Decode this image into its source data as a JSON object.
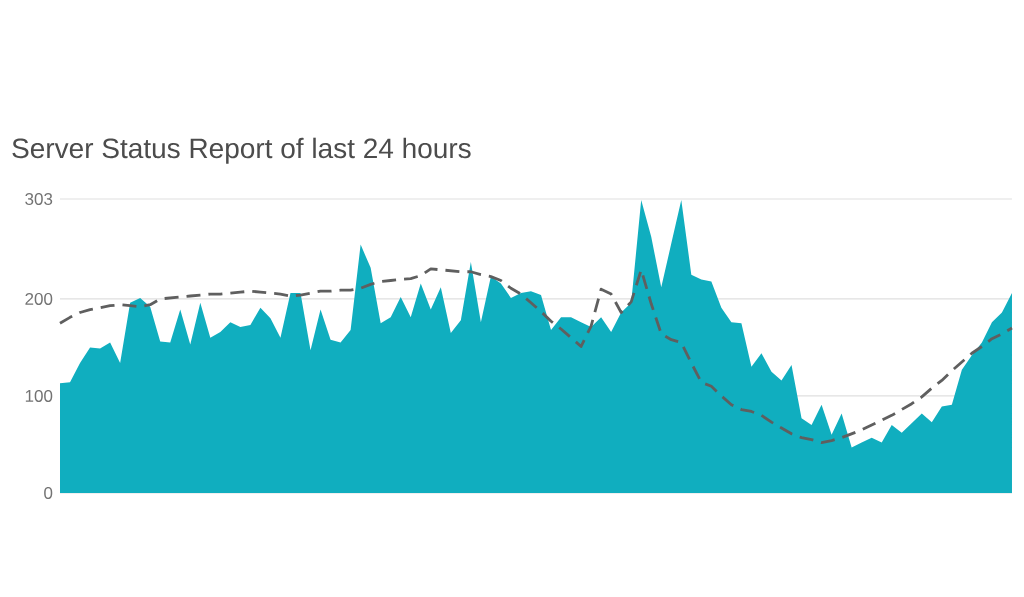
{
  "chart_data": {
    "type": "area",
    "title": "Server Status Report of last 24 hours",
    "categories": [
      null,
      null,
      null,
      null,
      null,
      null,
      null,
      null,
      null,
      null,
      null,
      null,
      null,
      null,
      null,
      null,
      null,
      null,
      null,
      null,
      null,
      null,
      null,
      null,
      null,
      null,
      null,
      null,
      null,
      null,
      null,
      null,
      null,
      null,
      null,
      null,
      null,
      null,
      null,
      null,
      null,
      null,
      null,
      null,
      null,
      null,
      null,
      null,
      null,
      null,
      null,
      null,
      null,
      null,
      null,
      null,
      null,
      null,
      null,
      null,
      null,
      null,
      null,
      null,
      null,
      null,
      null,
      null,
      null,
      null,
      null,
      null,
      null,
      null,
      null,
      null,
      null,
      null,
      null,
      null,
      null,
      null,
      null,
      null,
      null,
      null,
      null,
      null,
      null,
      null,
      null,
      null,
      null,
      null,
      null,
      null
    ],
    "series": [
      {
        "color": "#10aebf",
        "values": [
          113,
          114,
          134,
          150,
          149,
          155,
          134,
          196,
          201,
          192,
          156,
          155,
          189,
          153,
          196,
          160,
          166,
          176,
          171,
          173,
          191,
          180,
          160,
          206,
          206,
          147,
          189,
          158,
          155,
          168,
          256,
          232,
          175,
          181,
          202,
          181,
          216,
          189,
          212,
          165,
          178,
          238,
          176,
          223,
          216,
          201,
          206,
          208,
          204,
          168,
          181,
          181,
          176,
          171,
          181,
          166,
          186,
          196,
          302,
          264,
          212,
          257,
          302,
          225,
          220,
          218,
          191,
          176,
          175,
          130,
          144,
          125,
          116,
          132,
          77,
          70,
          91,
          60,
          82,
          47,
          52,
          57,
          52,
          70,
          62,
          72,
          82,
          73,
          89,
          91,
          127,
          142,
          155,
          176,
          186,
          206
        ]
      },
      {
        "type": "line",
        "color": "#5f5f5f",
        "line_style": "dashed",
        "values": [
          175,
          181,
          186,
          189,
          191,
          193,
          194,
          193,
          192,
          194,
          200,
          201,
          202,
          203,
          204,
          205,
          205,
          206,
          207,
          208,
          207,
          206,
          205,
          203,
          204,
          206,
          208,
          208,
          209,
          209,
          211,
          215,
          218,
          219,
          220,
          221,
          224,
          231,
          230,
          229,
          228,
          228,
          225,
          223,
          219,
          211,
          205,
          196,
          187,
          177,
          169,
          160,
          151,
          172,
          210,
          205,
          186,
          197,
          230,
          195,
          164,
          158,
          155,
          134,
          114,
          110,
          100,
          91,
          86,
          84,
          80,
          73,
          67,
          61,
          57,
          55,
          52,
          54,
          57,
          61,
          65,
          70,
          75,
          80,
          86,
          92,
          99,
          108,
          116,
          126,
          135,
          144,
          151,
          159,
          164,
          170
        ]
      }
    ],
    "ylim": [
      0,
      303
    ],
    "yticks": [
      0,
      100,
      200,
      303
    ],
    "grid": "y"
  }
}
